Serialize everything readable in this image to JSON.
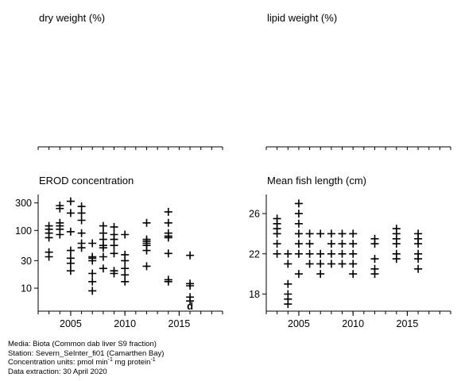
{
  "chart_data": [
    {
      "type": "scatter",
      "title": "dry weight (%)",
      "xlim": [
        2002,
        2019
      ],
      "x_ticks": [],
      "y_ticks": [],
      "points": []
    },
    {
      "type": "scatter",
      "title": "lipid weight (%)",
      "xlim": [
        2002,
        2019
      ],
      "x_ticks": [],
      "y_ticks": [],
      "points": []
    },
    {
      "type": "scatter",
      "title": "EROD concentration",
      "y_scale": "log",
      "ylim": [
        4,
        420
      ],
      "xlim": [
        2002,
        2019
      ],
      "x_ticks": [
        2005,
        2010,
        2015
      ],
      "y_ticks": [
        10,
        30,
        100,
        300
      ],
      "marker": "plus",
      "points": [
        {
          "x": 2003,
          "y": 35
        },
        {
          "x": 2003,
          "y": 42
        },
        {
          "x": 2003,
          "y": 75
        },
        {
          "x": 2003,
          "y": 90
        },
        {
          "x": 2003,
          "y": 105
        },
        {
          "x": 2003,
          "y": 120
        },
        {
          "x": 2004,
          "y": 85
        },
        {
          "x": 2004,
          "y": 105
        },
        {
          "x": 2004,
          "y": 120
        },
        {
          "x": 2004,
          "y": 135
        },
        {
          "x": 2004,
          "y": 240
        },
        {
          "x": 2004,
          "y": 270
        },
        {
          "x": 2005,
          "y": 20
        },
        {
          "x": 2005,
          "y": 27
        },
        {
          "x": 2005,
          "y": 33
        },
        {
          "x": 2005,
          "y": 45
        },
        {
          "x": 2005,
          "y": 95
        },
        {
          "x": 2005,
          "y": 200
        },
        {
          "x": 2005,
          "y": 320
        },
        {
          "x": 2006,
          "y": 50
        },
        {
          "x": 2006,
          "y": 60
        },
        {
          "x": 2006,
          "y": 90
        },
        {
          "x": 2006,
          "y": 150
        },
        {
          "x": 2006,
          "y": 200
        },
        {
          "x": 2006,
          "y": 260
        },
        {
          "x": 2007,
          "y": 9
        },
        {
          "x": 2007,
          "y": 13
        },
        {
          "x": 2007,
          "y": 18
        },
        {
          "x": 2007,
          "y": 30
        },
        {
          "x": 2007,
          "y": 33
        },
        {
          "x": 2007,
          "y": 35
        },
        {
          "x": 2007,
          "y": 60
        },
        {
          "x": 2008,
          "y": 22
        },
        {
          "x": 2008,
          "y": 35
        },
        {
          "x": 2008,
          "y": 50
        },
        {
          "x": 2008,
          "y": 55
        },
        {
          "x": 2008,
          "y": 70
        },
        {
          "x": 2008,
          "y": 90
        },
        {
          "x": 2008,
          "y": 120
        },
        {
          "x": 2009,
          "y": 18
        },
        {
          "x": 2009,
          "y": 20
        },
        {
          "x": 2009,
          "y": 40
        },
        {
          "x": 2009,
          "y": 55
        },
        {
          "x": 2009,
          "y": 70
        },
        {
          "x": 2009,
          "y": 85
        },
        {
          "x": 2009,
          "y": 115
        },
        {
          "x": 2010,
          "y": 13
        },
        {
          "x": 2010,
          "y": 17
        },
        {
          "x": 2010,
          "y": 22
        },
        {
          "x": 2010,
          "y": 30
        },
        {
          "x": 2010,
          "y": 38
        },
        {
          "x": 2010,
          "y": 85
        },
        {
          "x": 2012,
          "y": 24
        },
        {
          "x": 2012,
          "y": 45
        },
        {
          "x": 2012,
          "y": 55
        },
        {
          "x": 2012,
          "y": 60
        },
        {
          "x": 2012,
          "y": 65
        },
        {
          "x": 2012,
          "y": 70
        },
        {
          "x": 2012,
          "y": 135
        },
        {
          "x": 2014,
          "y": 13
        },
        {
          "x": 2014,
          "y": 14
        },
        {
          "x": 2014,
          "y": 40
        },
        {
          "x": 2014,
          "y": 75
        },
        {
          "x": 2014,
          "y": 80
        },
        {
          "x": 2014,
          "y": 90
        },
        {
          "x": 2014,
          "y": 135
        },
        {
          "x": 2014,
          "y": 210
        },
        {
          "x": 2016,
          "y": 6
        },
        {
          "x": 2016,
          "y": 7
        },
        {
          "x": 2016,
          "y": 11
        },
        {
          "x": 2016,
          "y": 12
        },
        {
          "x": 2016,
          "y": 37
        }
      ],
      "below_detection_marker": "d",
      "below_detection_points": [
        {
          "x": 2016,
          "y": 5
        }
      ]
    },
    {
      "type": "scatter",
      "title": "Mean fish length (cm)",
      "xlim": [
        2002,
        2019
      ],
      "ylim": [
        16.3,
        27.9
      ],
      "x_ticks": [
        2005,
        2010,
        2015
      ],
      "y_ticks": [
        18,
        22,
        26
      ],
      "marker": "plus",
      "points": [
        {
          "x": 2003,
          "y": 22
        },
        {
          "x": 2003,
          "y": 23
        },
        {
          "x": 2003,
          "y": 24
        },
        {
          "x": 2003,
          "y": 24.5
        },
        {
          "x": 2003,
          "y": 25
        },
        {
          "x": 2003,
          "y": 25.5
        },
        {
          "x": 2004,
          "y": 17
        },
        {
          "x": 2004,
          "y": 17.5
        },
        {
          "x": 2004,
          "y": 18
        },
        {
          "x": 2004,
          "y": 19
        },
        {
          "x": 2004,
          "y": 21
        },
        {
          "x": 2004,
          "y": 22
        },
        {
          "x": 2005,
          "y": 20
        },
        {
          "x": 2005,
          "y": 22
        },
        {
          "x": 2005,
          "y": 23
        },
        {
          "x": 2005,
          "y": 24
        },
        {
          "x": 2005,
          "y": 25
        },
        {
          "x": 2005,
          "y": 26
        },
        {
          "x": 2005,
          "y": 27
        },
        {
          "x": 2006,
          "y": 21
        },
        {
          "x": 2006,
          "y": 22
        },
        {
          "x": 2006,
          "y": 23
        },
        {
          "x": 2006,
          "y": 24
        },
        {
          "x": 2007,
          "y": 20
        },
        {
          "x": 2007,
          "y": 21
        },
        {
          "x": 2007,
          "y": 22
        },
        {
          "x": 2007,
          "y": 24
        },
        {
          "x": 2008,
          "y": 21
        },
        {
          "x": 2008,
          "y": 22
        },
        {
          "x": 2008,
          "y": 23
        },
        {
          "x": 2008,
          "y": 24
        },
        {
          "x": 2009,
          "y": 21
        },
        {
          "x": 2009,
          "y": 22
        },
        {
          "x": 2009,
          "y": 23
        },
        {
          "x": 2009,
          "y": 24
        },
        {
          "x": 2010,
          "y": 20
        },
        {
          "x": 2010,
          "y": 21
        },
        {
          "x": 2010,
          "y": 22
        },
        {
          "x": 2010,
          "y": 23
        },
        {
          "x": 2010,
          "y": 24
        },
        {
          "x": 2012,
          "y": 20
        },
        {
          "x": 2012,
          "y": 20.5
        },
        {
          "x": 2012,
          "y": 21.5
        },
        {
          "x": 2012,
          "y": 23
        },
        {
          "x": 2012,
          "y": 23.5
        },
        {
          "x": 2014,
          "y": 21.5
        },
        {
          "x": 2014,
          "y": 22
        },
        {
          "x": 2014,
          "y": 23
        },
        {
          "x": 2014,
          "y": 23.5
        },
        {
          "x": 2014,
          "y": 24
        },
        {
          "x": 2014,
          "y": 24.5
        },
        {
          "x": 2016,
          "y": 20.5
        },
        {
          "x": 2016,
          "y": 21.5
        },
        {
          "x": 2016,
          "y": 22
        },
        {
          "x": 2016,
          "y": 23
        },
        {
          "x": 2016,
          "y": 23.5
        },
        {
          "x": 2016,
          "y": 24
        }
      ]
    }
  ],
  "footer": {
    "media": "Media: Biota (Common dab liver S9 fraction)",
    "station": "Station: Severn_SeInter_fi01 (Camarthen Bay)",
    "units_prefix": "Concentration units:  pmol min",
    "units_exp1": "-1",
    "units_middle": " mg protein",
    "units_exp2": "-1",
    "extraction": "Data extraction: 30 April 2020"
  }
}
